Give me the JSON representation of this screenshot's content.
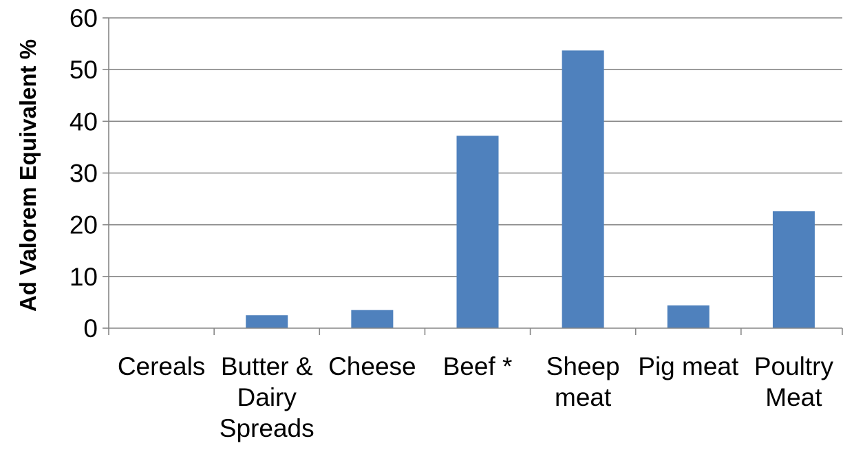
{
  "chart_data": {
    "type": "bar",
    "title": "",
    "xlabel": "",
    "ylabel": "Ad Valorem Equivalent %",
    "categories": [
      "Cereals",
      "Butter & Dairy Spreads",
      "Cheese",
      "Beef *",
      "Sheep meat",
      "Pig meat",
      "Poultry Meat"
    ],
    "category_lines": [
      [
        "Cereals"
      ],
      [
        "Butter &",
        "Dairy",
        "Spreads"
      ],
      [
        "Cheese"
      ],
      [
        "Beef *"
      ],
      [
        "Sheep",
        "meat"
      ],
      [
        "Pig meat"
      ],
      [
        "Poultry",
        "Meat"
      ]
    ],
    "values": [
      0,
      2.5,
      3.5,
      37.2,
      53.7,
      4.4,
      22.6
    ],
    "ylim": [
      0,
      60
    ],
    "yticks": [
      0,
      10,
      20,
      30,
      40,
      50,
      60
    ],
    "grid": true,
    "legend": "none",
    "bar_color": "#4F81BD",
    "grid_color": "#868686"
  }
}
